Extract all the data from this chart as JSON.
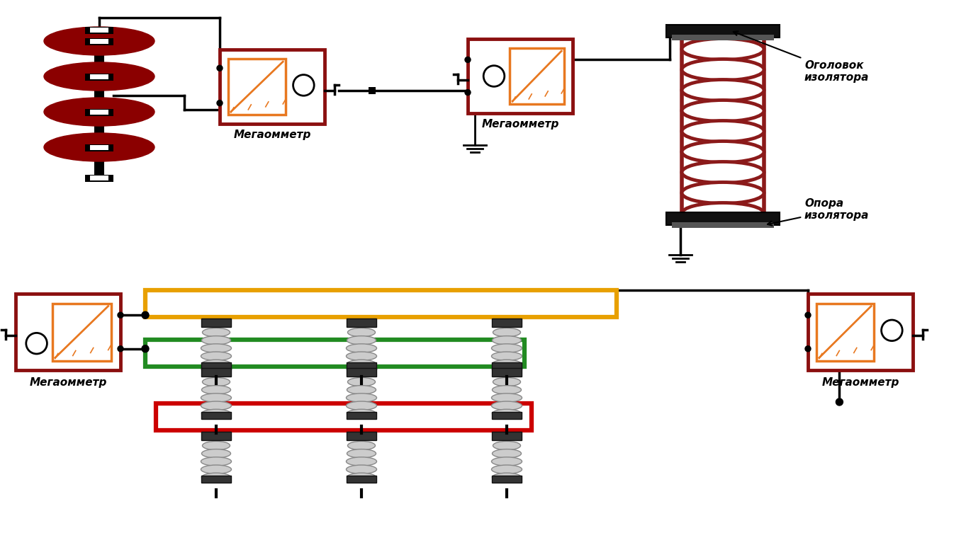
{
  "bg_color": "#ffffff",
  "dark_red": "#8B0000",
  "orange_frame": "#E87820",
  "dark_red_frame": "#8B1010",
  "orange_bus": "#E8A000",
  "green_bus": "#228B22",
  "red_bus": "#CC0000",
  "black": "#000000",
  "coil_color": "#8B1A1A",
  "disk_color": "#8B0000",
  "text_megaohm": "Мегаомметр",
  "label_head": "Оголовок\nизолятора",
  "label_base": "Опора\nизолятора"
}
